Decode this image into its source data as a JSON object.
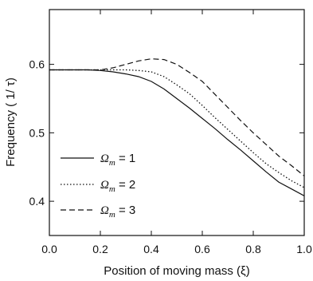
{
  "chart_data": {
    "type": "line",
    "xlabel": "Position of moving mass (ξ)",
    "ylabel": "Frequency ( 1/    τ)",
    "xlim": [
      0.0,
      1.0
    ],
    "ylim": [
      0.35,
      0.68
    ],
    "xticks": [
      0.0,
      0.2,
      0.4,
      0.6,
      0.8,
      1.0
    ],
    "xtick_labels": [
      "0.0",
      "0.2",
      "0.4",
      "0.6",
      "0.8",
      "1.0"
    ],
    "yticks": [
      0.4,
      0.5,
      0.6
    ],
    "ytick_labels": [
      "0.4",
      "0.5",
      "0.6"
    ],
    "grid": false,
    "legend_position": "lower-left",
    "series": [
      {
        "name": "Ω_m = 1",
        "legend": {
          "symbol": "Ω",
          "sub": "m",
          "rest": " = 1"
        },
        "style": "solid",
        "x": [
          0.0,
          0.05,
          0.1,
          0.15,
          0.2,
          0.25,
          0.3,
          0.35,
          0.4,
          0.45,
          0.5,
          0.55,
          0.6,
          0.65,
          0.7,
          0.75,
          0.8,
          0.85,
          0.9,
          0.95,
          1.0
        ],
        "y": [
          0.592,
          0.592,
          0.592,
          0.592,
          0.591,
          0.589,
          0.586,
          0.582,
          0.575,
          0.564,
          0.55,
          0.536,
          0.521,
          0.506,
          0.49,
          0.475,
          0.459,
          0.443,
          0.428,
          0.418,
          0.408
        ]
      },
      {
        "name": "Ω_m = 2",
        "legend": {
          "symbol": "Ω",
          "sub": "m",
          "rest": " = 2"
        },
        "style": "dotted",
        "x": [
          0.0,
          0.05,
          0.1,
          0.15,
          0.2,
          0.25,
          0.3,
          0.35,
          0.4,
          0.45,
          0.5,
          0.55,
          0.6,
          0.65,
          0.7,
          0.75,
          0.8,
          0.85,
          0.9,
          0.95,
          1.0
        ],
        "y": [
          0.592,
          0.592,
          0.592,
          0.592,
          0.592,
          0.592,
          0.592,
          0.591,
          0.589,
          0.582,
          0.57,
          0.557,
          0.54,
          0.522,
          0.505,
          0.488,
          0.471,
          0.455,
          0.442,
          0.43,
          0.42
        ]
      },
      {
        "name": "Ω_m = 3",
        "legend": {
          "symbol": "Ω",
          "sub": "m",
          "rest": " = 3"
        },
        "style": "dashed",
        "x": [
          0.0,
          0.05,
          0.1,
          0.15,
          0.2,
          0.25,
          0.3,
          0.35,
          0.4,
          0.45,
          0.5,
          0.55,
          0.6,
          0.65,
          0.7,
          0.75,
          0.8,
          0.85,
          0.9,
          0.95,
          1.0
        ],
        "y": [
          0.592,
          0.592,
          0.592,
          0.592,
          0.592,
          0.595,
          0.6,
          0.605,
          0.608,
          0.607,
          0.6,
          0.588,
          0.575,
          0.556,
          0.537,
          0.518,
          0.5,
          0.483,
          0.466,
          0.452,
          0.437
        ]
      }
    ]
  }
}
